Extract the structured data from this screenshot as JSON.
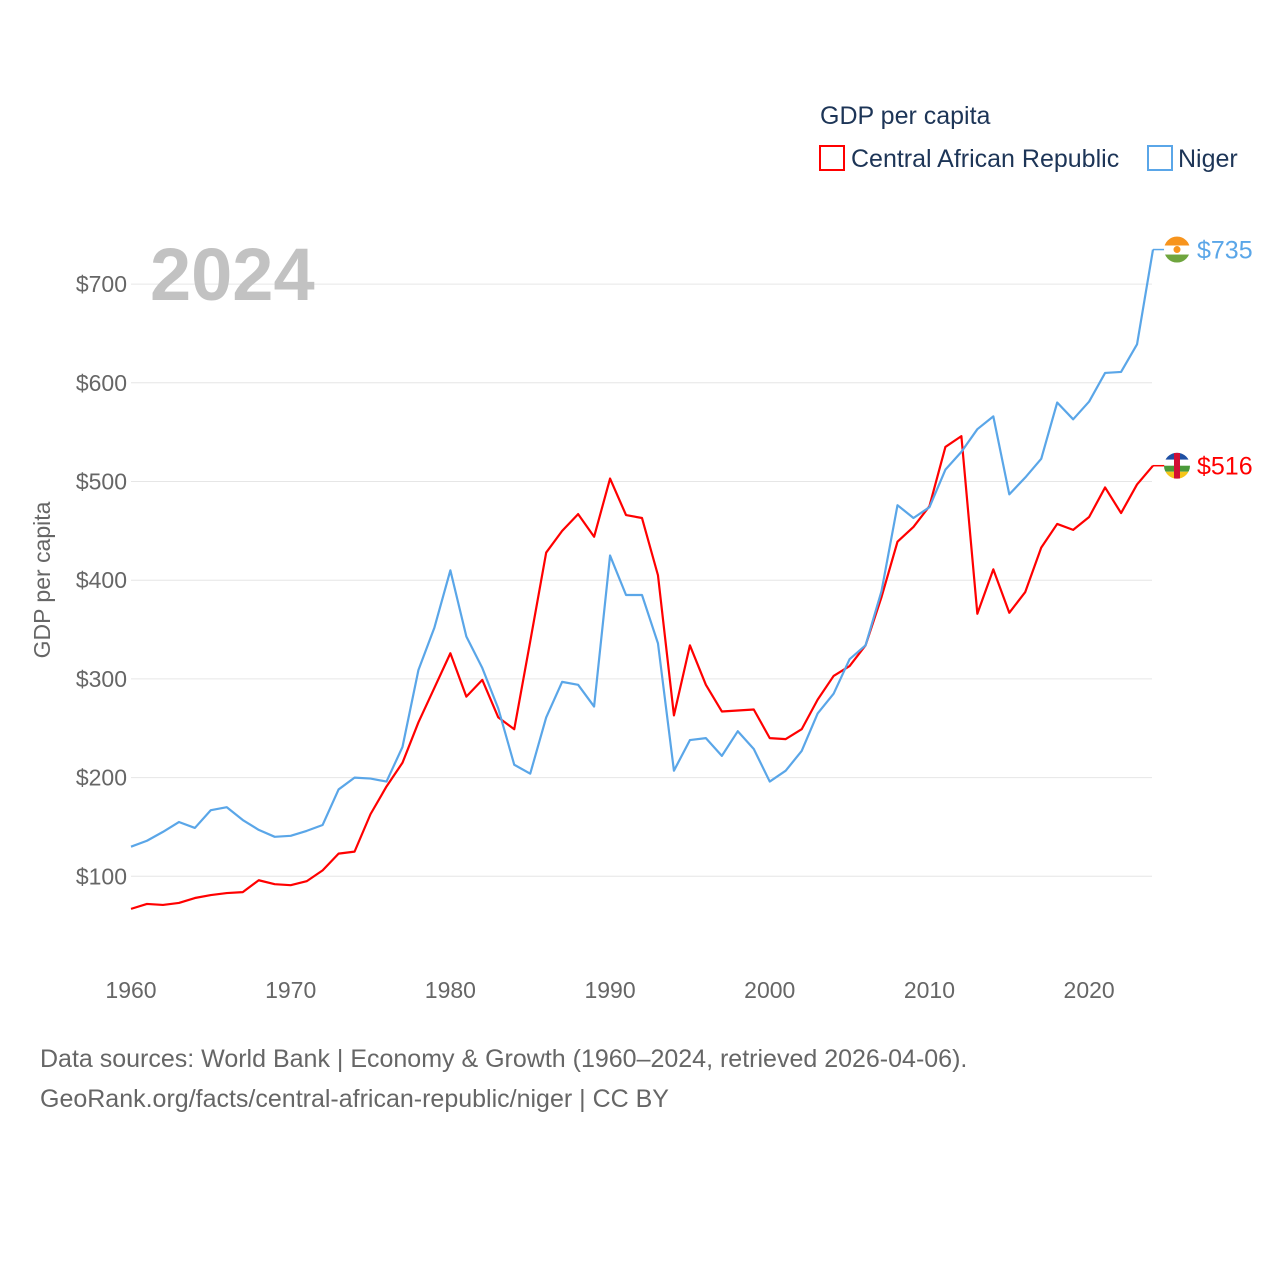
{
  "chart_data": {
    "type": "line",
    "title": "GDP per capita",
    "year_label": "2024",
    "ylabel": "GDP per capita",
    "xlabel": "",
    "xlim": [
      1960,
      2024
    ],
    "ylim": [
      0,
      760
    ],
    "x_ticks": [
      "1960",
      "1970",
      "1980",
      "1990",
      "2000",
      "2010",
      "2020"
    ],
    "y_ticks": [
      {
        "v": 100,
        "label": "$100"
      },
      {
        "v": 200,
        "label": "$200"
      },
      {
        "v": 300,
        "label": "$300"
      },
      {
        "v": 400,
        "label": "$400"
      },
      {
        "v": 500,
        "label": "$500"
      },
      {
        "v": 600,
        "label": "$600"
      },
      {
        "v": 700,
        "label": "$700"
      }
    ],
    "grid": true,
    "legend_position": "top-right",
    "x_start": 1960,
    "series": [
      {
        "name": "Central African Republic",
        "color": "#ff0000",
        "end_label": "$516",
        "flag": "central-african-republic-flag",
        "values": [
          67,
          72,
          71,
          73,
          78,
          81,
          83,
          84,
          96,
          92,
          91,
          95,
          106,
          123,
          125,
          163,
          191,
          215,
          256,
          291,
          326,
          282,
          299,
          261,
          249,
          338,
          428,
          450,
          467,
          444,
          503,
          466,
          463,
          405,
          263,
          334,
          294,
          267,
          268,
          269,
          240,
          239,
          249,
          279,
          303,
          313,
          334,
          383,
          439,
          454,
          475,
          535,
          546,
          366,
          411,
          367,
          388,
          433,
          457,
          451,
          464,
          494,
          468,
          497,
          516
        ]
      },
      {
        "name": "Niger",
        "color": "#5aa6e8",
        "end_label": "$735",
        "flag": "niger-flag",
        "values": [
          130,
          136,
          145,
          155,
          149,
          167,
          170,
          157,
          147,
          140,
          141,
          146,
          152,
          188,
          200,
          199,
          196,
          231,
          309,
          352,
          410,
          343,
          311,
          270,
          213,
          204,
          261,
          297,
          294,
          272,
          425,
          385,
          385,
          336,
          207,
          238,
          240,
          222,
          247,
          229,
          196,
          207,
          227,
          265,
          285,
          320,
          334,
          389,
          476,
          463,
          474,
          512,
          530,
          553,
          566,
          487,
          504,
          523,
          580,
          563,
          581,
          610,
          611,
          639,
          735
        ]
      }
    ]
  },
  "footer": {
    "line1": "Data sources: World Bank | Economy & Growth (1960–2024, retrieved 2026-04-06).",
    "line2": "GeoRank.org/facts/central-african-republic/niger | CC BY"
  }
}
